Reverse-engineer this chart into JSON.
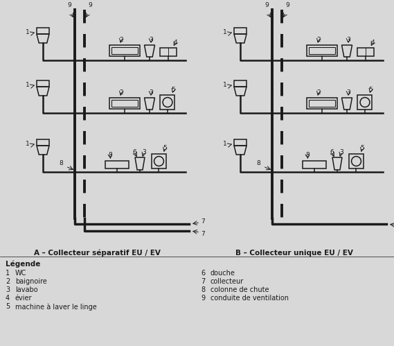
{
  "background_color": "#d8d8d8",
  "line_color": "#1a1a1a",
  "title_A": "A – Collecteur séparatif EU / EV",
  "title_B": "B – Collecteur unique EU / EV",
  "legend_title": "Légende",
  "legend_items_left": [
    [
      "1",
      "WC"
    ],
    [
      "2",
      "baignoire"
    ],
    [
      "3",
      "lavabo"
    ],
    [
      "4",
      "évier"
    ],
    [
      "5",
      "machine à laver le linge"
    ]
  ],
  "legend_items_right": [
    [
      "6",
      "douche"
    ],
    [
      "7",
      "collecteur"
    ],
    [
      "8",
      "colonne de chute"
    ],
    [
      "9",
      "conduite de ventilation"
    ]
  ],
  "figsize": [
    5.69,
    4.99
  ],
  "dpi": 100
}
